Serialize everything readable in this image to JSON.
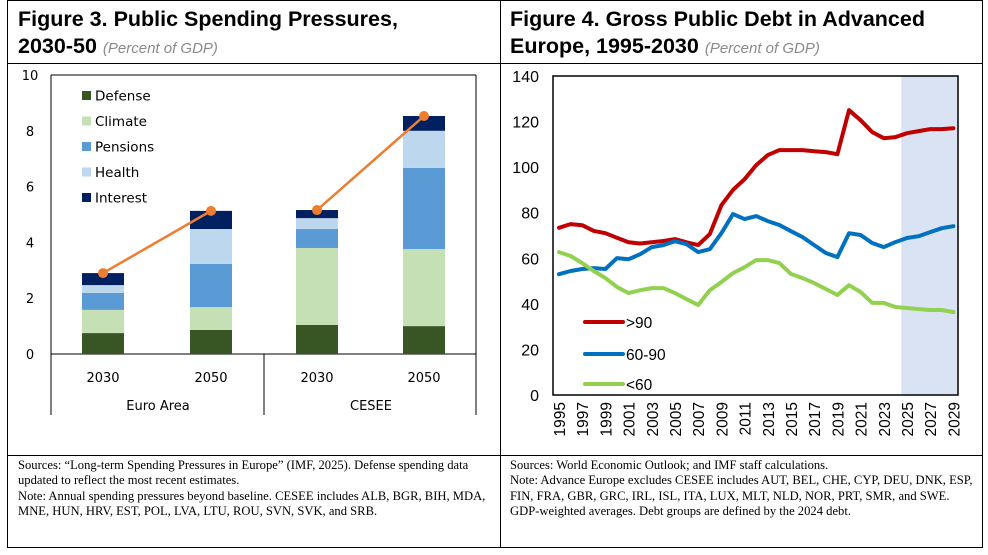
{
  "fig3": {
    "title_line1": "Figure 3. Public Spending Pressures,",
    "title_line2": "2030-50",
    "subtitle": "(Percent of GDP)",
    "notes": [
      "Sources: “Long-term Spending Pressures in Europe” (IMF, 2025). Defense spending data updated to reflect the most recent estimates.",
      "Note: Annual spending pressures beyond baseline. CESEE includes ALB, BGR, BIH, MDA, MNE, HUN, HRV, EST, POL, LVA, LTU, ROU, SVN, SVK, and SRB."
    ]
  },
  "fig4": {
    "title_line1": "Figure 4. Gross Public Debt in Advanced",
    "title_line2": "Europe, 1995-2030",
    "subtitle": "(Percent of GDP)",
    "notes": [
      "Sources: World Economic Outlook; and IMF staff calculations.",
      "Note: Advance Europe excludes CESEE includes AUT, BEL, CHE, CYP, DEU, DNK, ESP, FIN, FRA, GBR, GRC, IRL, ISL, ITA, LUX, MLT, NLD, NOR, PRT, SMR, and SWE. GDP-weighted averages. Debt groups are defined by the 2024 debt."
    ]
  },
  "chart_data": [
    {
      "type": "bar",
      "stacked": true,
      "title": "Figure 3. Public Spending Pressures, 2030-50",
      "subtitle": "(Percent of GDP)",
      "xlabel": "",
      "ylabel": "",
      "ylim": [
        0,
        10
      ],
      "yticks": [
        0,
        2,
        4,
        6,
        8,
        10
      ],
      "grid": false,
      "legend_position": "top-left",
      "groups": [
        "Euro Area",
        "CESEE"
      ],
      "categories": [
        "2030",
        "2050",
        "2030",
        "2050"
      ],
      "category_groups": [
        "Euro Area",
        "Euro Area",
        "CESEE",
        "CESEE"
      ],
      "series": [
        {
          "name": "Defense",
          "color": "#375623",
          "values": [
            0.75,
            0.86,
            1.04,
            1.0
          ]
        },
        {
          "name": "Climate",
          "color": "#c5e0b4",
          "values": [
            0.83,
            0.82,
            2.76,
            2.76
          ]
        },
        {
          "name": "Pensions",
          "color": "#5b9bd5",
          "values": [
            0.61,
            1.55,
            0.68,
            2.91
          ]
        },
        {
          "name": "Health",
          "color": "#bdd7ee",
          "values": [
            0.28,
            1.25,
            0.39,
            1.33
          ]
        },
        {
          "name": "Interest",
          "color": "#002060",
          "values": [
            0.43,
            0.65,
            0.29,
            0.53
          ]
        }
      ],
      "totals_line": {
        "color": "#ed7d31",
        "pairs": [
          [
            "Euro Area",
            [
              2.9,
              5.13
            ]
          ],
          [
            "CESEE",
            [
              5.16,
              8.53
            ]
          ]
        ]
      }
    },
    {
      "type": "line",
      "title": "Figure 4. Gross Public Debt in Advanced Europe, 1995-2030",
      "subtitle": "(Percent of GDP)",
      "xlabel": "",
      "ylabel": "",
      "ylim": [
        0,
        140
      ],
      "yticks": [
        0,
        20,
        40,
        60,
        80,
        100,
        120,
        140
      ],
      "xticks": [
        "1995",
        "1997",
        "1999",
        "2001",
        "2003",
        "2005",
        "2007",
        "2009",
        "2011",
        "2013",
        "2015",
        "2017",
        "2019",
        "2021",
        "2023",
        "2025",
        "2027",
        "2029"
      ],
      "grid": false,
      "legend_position": "bottom-left",
      "shaded_range": {
        "from": 2024.5,
        "to": 2029.5,
        "color": "#dae3f3",
        "meaning": "projection"
      },
      "x": [
        1995,
        1996,
        1997,
        1998,
        1999,
        2000,
        2001,
        2002,
        2003,
        2004,
        2005,
        2006,
        2007,
        2008,
        2009,
        2010,
        2011,
        2012,
        2013,
        2014,
        2015,
        2016,
        2017,
        2018,
        2019,
        2020,
        2021,
        2022,
        2023,
        2024,
        2025,
        2026,
        2027,
        2028,
        2029
      ],
      "series": [
        {
          "name": ">90",
          "color": "#c00000",
          "values": [
            73.4,
            75.0,
            74.5,
            72.0,
            71.0,
            69.0,
            67.0,
            66.5,
            67.0,
            67.6,
            68.4,
            67.0,
            65.8,
            70.6,
            83.3,
            90.0,
            94.7,
            100.9,
            105.3,
            107.5,
            107.5,
            107.5,
            107.0,
            106.6,
            105.7,
            125.0,
            120.6,
            115.4,
            112.7,
            113.2,
            114.9,
            115.8,
            116.7,
            116.7,
            117.1
          ]
        },
        {
          "name": "60-90",
          "color": "#0070c0",
          "values": [
            53.0,
            54.4,
            55.3,
            55.7,
            55.3,
            60.1,
            59.6,
            61.8,
            64.9,
            65.8,
            67.5,
            66.2,
            62.7,
            64.0,
            71.0,
            79.4,
            77.2,
            78.5,
            76.3,
            74.6,
            71.9,
            69.3,
            65.8,
            62.3,
            60.5,
            71.0,
            70.2,
            66.7,
            64.9,
            67.1,
            68.9,
            69.7,
            71.5,
            73.2,
            74.1
          ]
        },
        {
          "name": "<60",
          "color": "#92d050",
          "values": [
            62.7,
            61.0,
            57.9,
            54.4,
            51.3,
            47.4,
            44.7,
            46.0,
            46.9,
            46.9,
            44.7,
            42.1,
            39.5,
            46.0,
            49.6,
            53.5,
            56.1,
            59.2,
            59.2,
            57.9,
            53.1,
            51.3,
            49.1,
            46.5,
            43.9,
            48.2,
            45.2,
            40.4,
            40.4,
            38.6,
            38.2,
            37.7,
            37.3,
            37.3,
            36.4
          ]
        }
      ]
    }
  ]
}
